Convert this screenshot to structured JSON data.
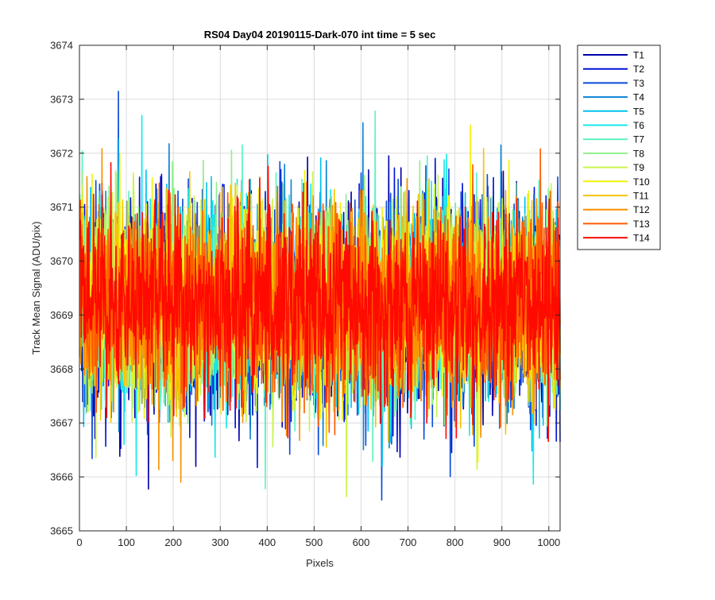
{
  "chart_data": {
    "type": "line",
    "title": "RS04 Day04 20190115-Dark-070 int time = 5 sec",
    "xlabel": "Pixels",
    "ylabel": "Track Mean Signal (ADU/pix)",
    "xlim": [
      0,
      1024
    ],
    "ylim": [
      3665,
      3674
    ],
    "xticks": [
      0,
      100,
      200,
      300,
      400,
      500,
      600,
      700,
      800,
      900,
      1000
    ],
    "yticks": [
      3665,
      3666,
      3667,
      3668,
      3669,
      3670,
      3671,
      3672,
      3673,
      3674
    ],
    "grid": true,
    "legend_position": "outside-right",
    "x_note": "each series has one value per pixel, x = 1..1024",
    "series": [
      {
        "name": "T1",
        "color": "#0000aa",
        "mean": 3669.1,
        "spread": 0.95
      },
      {
        "name": "T2",
        "color": "#0012d6",
        "mean": 3669.1,
        "spread": 0.95
      },
      {
        "name": "T3",
        "color": "#0a4ad8",
        "mean": 3669.15,
        "spread": 0.9
      },
      {
        "name": "T4",
        "color": "#0b82d6",
        "mean": 3669.15,
        "spread": 0.9
      },
      {
        "name": "T5",
        "color": "#00c2f0",
        "mean": 3669.2,
        "spread": 0.9
      },
      {
        "name": "T6",
        "color": "#16e8ea",
        "mean": 3669.2,
        "spread": 0.9
      },
      {
        "name": "T7",
        "color": "#5cf2c2",
        "mean": 3669.2,
        "spread": 0.88
      },
      {
        "name": "T8",
        "color": "#8ef08a",
        "mean": 3669.25,
        "spread": 0.88
      },
      {
        "name": "T9",
        "color": "#c8f44a",
        "mean": 3669.25,
        "spread": 0.88
      },
      {
        "name": "T10",
        "color": "#f2f20c",
        "mean": 3669.25,
        "spread": 0.88
      },
      {
        "name": "T11",
        "color": "#f7c500",
        "mean": 3669.2,
        "spread": 0.86
      },
      {
        "name": "T12",
        "color": "#fb9000",
        "mean": 3669.2,
        "spread": 0.86
      },
      {
        "name": "T13",
        "color": "#ff5a00",
        "mean": 3669.2,
        "spread": 0.86
      },
      {
        "name": "T14",
        "color": "#ff0a00",
        "mean": 3669.2,
        "spread": 0.86
      }
    ]
  }
}
